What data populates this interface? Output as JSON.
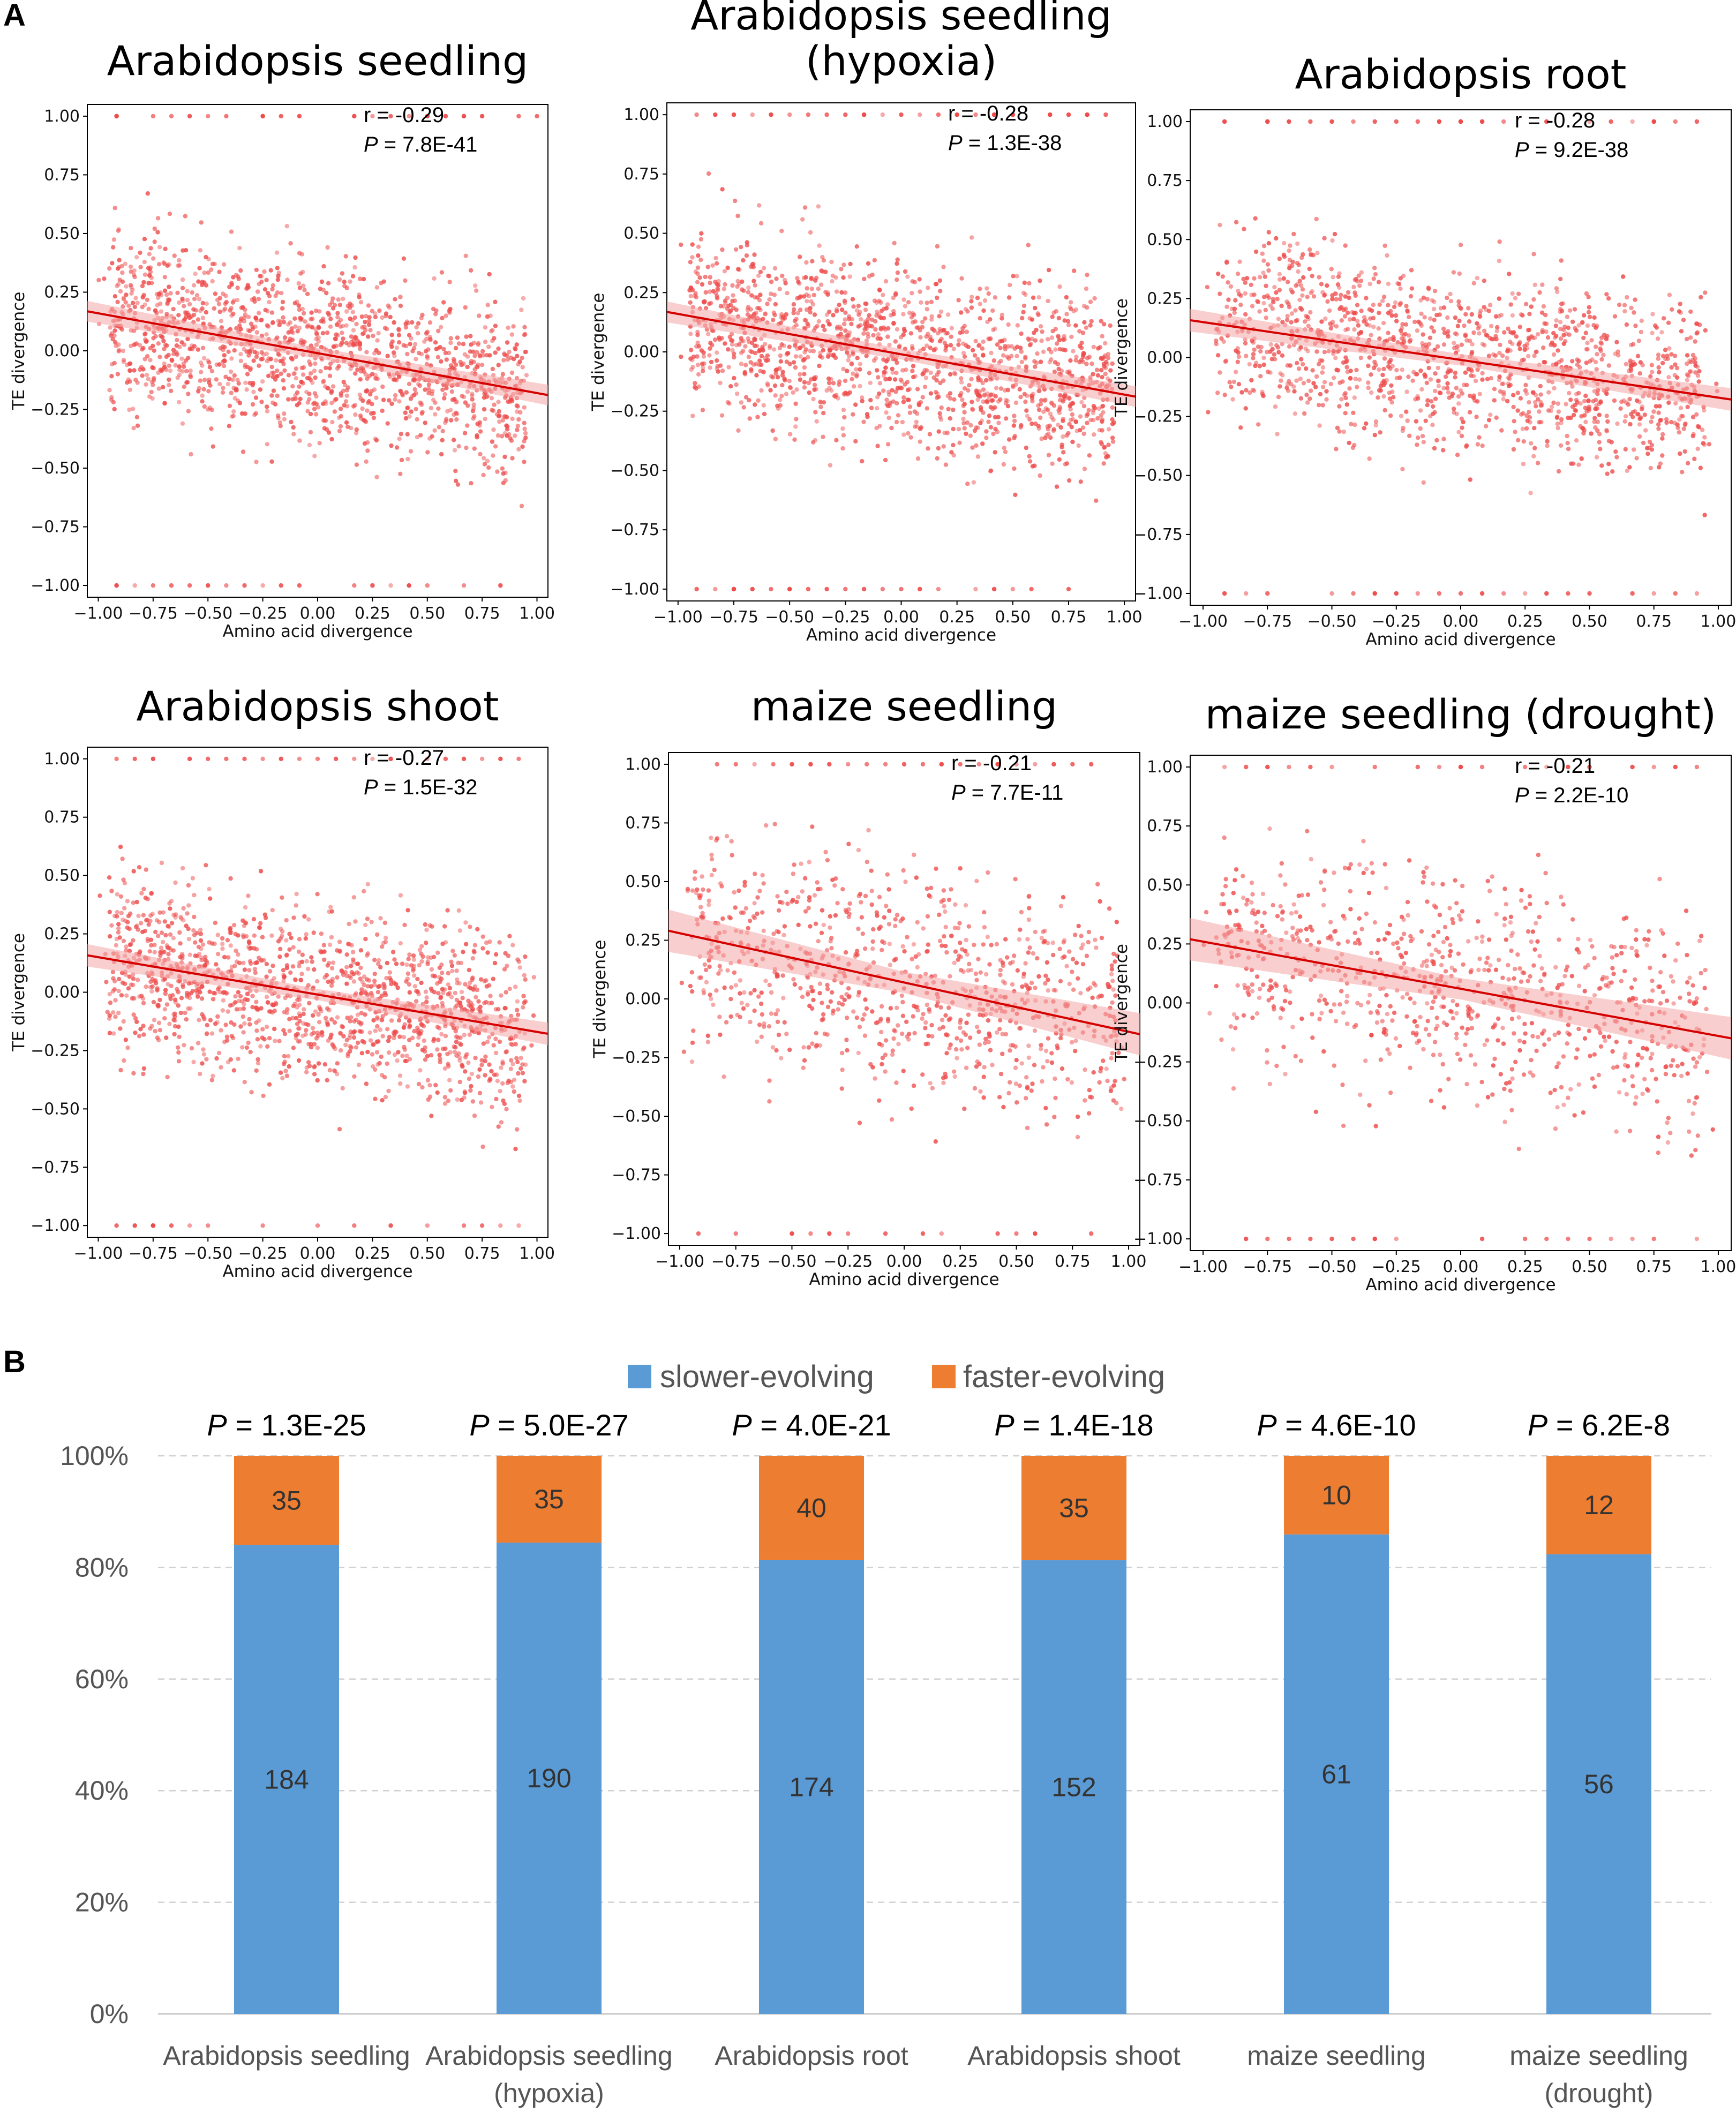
{
  "panel_labels": {
    "a": "A",
    "b": "B"
  },
  "colors": {
    "points": "#ee4b4b",
    "fit_line": "#d40000",
    "ci_band": "#f4a6a6",
    "slower": "#5b9bd5",
    "faster": "#ed7d31",
    "grid": "#d0d0d0"
  },
  "chart_data": [
    {
      "type": "scatter",
      "panel": "A",
      "title": "Arabidopsis seedling",
      "xlabel": "Amino acid divergence",
      "ylabel": "TE divergence",
      "xlim": [
        -1.05,
        1.05
      ],
      "ylim": [
        -1.05,
        1.05
      ],
      "xticks": [
        "−1.00",
        "−0.75",
        "−0.50",
        "−0.25",
        "0.00",
        "0.25",
        "0.50",
        "0.75",
        "1.00"
      ],
      "yticks": [
        "1.00",
        "0.75",
        "0.50",
        "0.25",
        "0.00",
        "−0.25",
        "−0.50",
        "−0.75",
        "−1.00"
      ],
      "r_label": "r = -0.29",
      "p_prefix": "P",
      "p_value": " = 7.8E-41",
      "fit": {
        "intercept": -0.01,
        "slope": -0.17,
        "ci_halfwidth": 0.022
      },
      "n_points": 1600,
      "seed": 11
    },
    {
      "type": "scatter",
      "panel": "A",
      "title": "Arabidopsis seedling",
      "title_line2": "(hypoxia)",
      "xlabel": "Amino acid divergence",
      "ylabel": "TE divergence",
      "xlim": [
        -1.05,
        1.05
      ],
      "ylim": [
        -1.05,
        1.05
      ],
      "xticks": [
        "−1.00",
        "−0.75",
        "−0.50",
        "−0.25",
        "0.00",
        "0.25",
        "0.50",
        "0.75",
        "1.00"
      ],
      "yticks": [
        "1.00",
        "0.75",
        "0.50",
        "0.25",
        "0.00",
        "−0.25",
        "−0.50",
        "−0.75",
        "−1.00"
      ],
      "r_label": "r = -0.28",
      "p_prefix": "P",
      "p_value": " = 1.3E-38",
      "fit": {
        "intercept": -0.01,
        "slope": -0.17,
        "ci_halfwidth": 0.022
      },
      "n_points": 1600,
      "seed": 23
    },
    {
      "type": "scatter",
      "panel": "A",
      "title": "Arabidopsis root",
      "xlabel": "Amino acid divergence",
      "ylabel": "TE divergence",
      "xlim": [
        -1.05,
        1.05
      ],
      "ylim": [
        -1.05,
        1.05
      ],
      "xticks": [
        "−1.00",
        "−0.75",
        "−0.50",
        "−0.25",
        "0.00",
        "0.25",
        "0.50",
        "0.75",
        "1.00"
      ],
      "yticks": [
        "1.00",
        "0.75",
        "0.50",
        "0.25",
        "0.00",
        "−0.25",
        "−0.50",
        "−0.75",
        "−1.00"
      ],
      "r_label": "r = -0.28",
      "p_prefix": "P",
      "p_value": " = 9.2E-38",
      "fit": {
        "intercept": -0.01,
        "slope": -0.16,
        "ci_halfwidth": 0.024
      },
      "n_points": 1500,
      "seed": 37
    },
    {
      "type": "scatter",
      "panel": "A",
      "title": "Arabidopsis shoot",
      "xlabel": "Amino acid divergence",
      "ylabel": "TE divergence",
      "xlim": [
        -1.05,
        1.05
      ],
      "ylim": [
        -1.05,
        1.05
      ],
      "xticks": [
        "−1.00",
        "−0.75",
        "−0.50",
        "−0.25",
        "0.00",
        "0.25",
        "0.50",
        "0.75",
        "1.00"
      ],
      "yticks": [
        "1.00",
        "0.75",
        "0.50",
        "0.25",
        "0.00",
        "−0.25",
        "−0.50",
        "−0.75",
        "−1.00"
      ],
      "r_label": "r = -0.27",
      "p_prefix": "P",
      "p_value": " = 1.5E-32",
      "fit": {
        "intercept": -0.01,
        "slope": -0.16,
        "ci_halfwidth": 0.024
      },
      "n_points": 1500,
      "seed": 41
    },
    {
      "type": "scatter",
      "panel": "A",
      "title": "maize seedling",
      "xlabel": "Amino acid divergence",
      "ylabel": "TE divergence",
      "xlim": [
        -1.05,
        1.05
      ],
      "ylim": [
        -1.05,
        1.05
      ],
      "xticks": [
        "−1.00",
        "−0.75",
        "−0.50",
        "−0.25",
        "0.00",
        "0.25",
        "0.50",
        "0.75",
        "1.00"
      ],
      "yticks": [
        "1.00",
        "0.75",
        "0.50",
        "0.25",
        "0.00",
        "−0.25",
        "−0.50",
        "−0.75",
        "−1.00"
      ],
      "r_label": "r = -0.21",
      "p_prefix": "P",
      "p_value": " = 7.7E-11",
      "fit": {
        "intercept": 0.07,
        "slope": -0.21,
        "ci_halfwidth": 0.045
      },
      "n_points": 950,
      "seed": 53
    },
    {
      "type": "scatter",
      "panel": "A",
      "title": "maize seedling (drought)",
      "xlabel": "Amino acid divergence",
      "ylabel": "TE divergence",
      "xlim": [
        -1.05,
        1.05
      ],
      "ylim": [
        -1.05,
        1.05
      ],
      "xticks": [
        "−1.00",
        "−0.75",
        "−0.50",
        "−0.25",
        "0.00",
        "0.25",
        "0.50",
        "0.75",
        "1.00"
      ],
      "yticks": [
        "1.00",
        "0.75",
        "0.50",
        "0.25",
        "0.00",
        "−0.25",
        "−0.50",
        "−0.75",
        "−1.00"
      ],
      "r_label": "r = -0.21",
      "p_prefix": "P",
      "p_value": " = 2.2E-10",
      "fit": {
        "intercept": 0.06,
        "slope": -0.2,
        "ci_halfwidth": 0.045
      },
      "n_points": 900,
      "seed": 67
    },
    {
      "type": "bar",
      "stacked": true,
      "normalized": true,
      "panel": "B",
      "categories": [
        [
          "Arabidopsis seedling"
        ],
        [
          "Arabidopsis seedling",
          "(hypoxia)"
        ],
        [
          "Arabidopsis root"
        ],
        [
          "Arabidopsis shoot"
        ],
        [
          "maize seedling"
        ],
        [
          "maize seedling",
          "(drought)"
        ]
      ],
      "series": [
        {
          "name": "slower-evolving",
          "values": [
            184,
            190,
            174,
            152,
            61,
            56
          ]
        },
        {
          "name": "faster-evolving",
          "values": [
            35,
            35,
            40,
            35,
            10,
            12
          ]
        }
      ],
      "p_prefix": "P",
      "p_values": [
        " = 1.3E-25",
        " = 5.0E-27",
        " = 4.0E-21",
        " = 1.4E-18",
        " = 4.6E-10",
        " = 6.2E-8"
      ],
      "yticks": [
        "0%",
        "20%",
        "40%",
        "60%",
        "80%",
        "100%"
      ],
      "ylim": [
        0,
        100
      ]
    }
  ]
}
